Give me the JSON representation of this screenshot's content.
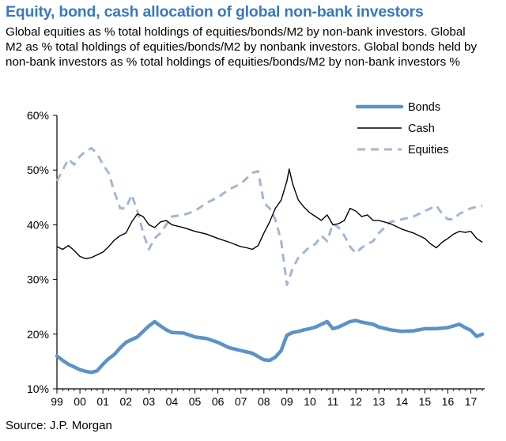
{
  "chart_data": {
    "type": "line",
    "title": "Equity, bond, cash allocation of global non-bank investors",
    "subtitle": "Global equities as % total holdings of equities/bonds/M2 by non-bank investors. Global M2 as % total holdings of equities/bonds/M2 by nonbank investors. Global bonds held by non-bank investors as % total holdings of equities/bonds/M2 by non-bank investors %",
    "source": "Source: J.P. Morgan",
    "xlabel": "",
    "ylabel": "",
    "xlim": [
      1999,
      2017.6
    ],
    "ylim": [
      10,
      60
    ],
    "x_tick_values": [
      1999,
      2000,
      2001,
      2002,
      2003,
      2004,
      2005,
      2006,
      2007,
      2008,
      2009,
      2010,
      2011,
      2012,
      2013,
      2014,
      2015,
      2016,
      2017
    ],
    "x_tick_labels": [
      "99",
      "00",
      "01",
      "02",
      "03",
      "04",
      "05",
      "06",
      "07",
      "08",
      "09",
      "10",
      "11",
      "12",
      "13",
      "14",
      "15",
      "16",
      "17"
    ],
    "y_tick_values": [
      10,
      20,
      30,
      40,
      50,
      60
    ],
    "y_tick_labels": [
      "10%",
      "20%",
      "30%",
      "40%",
      "50%",
      "60%"
    ],
    "legend_position": "top-right",
    "series": [
      {
        "name": "Bonds",
        "style": "thick-solid",
        "color": "#5b93c7",
        "x": [
          1999,
          1999.25,
          1999.5,
          1999.75,
          2000,
          2000.25,
          2000.5,
          2000.75,
          2001,
          2001.25,
          2001.5,
          2001.75,
          2002,
          2002.25,
          2002.5,
          2002.75,
          2003,
          2003.25,
          2003.5,
          2003.75,
          2004,
          2004.5,
          2005,
          2005.5,
          2006,
          2006.5,
          2007,
          2007.5,
          2008,
          2008.25,
          2008.5,
          2008.75,
          2009,
          2009.25,
          2009.5,
          2009.75,
          2010,
          2010.25,
          2010.5,
          2010.75,
          2011,
          2011.25,
          2011.5,
          2011.75,
          2012,
          2012.25,
          2012.5,
          2012.75,
          2013,
          2013.5,
          2014,
          2014.5,
          2015,
          2015.5,
          2016,
          2016.25,
          2016.5,
          2016.75,
          2017,
          2017.25,
          2017.5
        ],
        "values": [
          16,
          15.2,
          14.5,
          14,
          13.5,
          13.2,
          13,
          13.3,
          14.5,
          15.5,
          16.3,
          17.5,
          18.5,
          19,
          19.5,
          20.5,
          21.5,
          22.3,
          21.5,
          20.8,
          20.3,
          20.2,
          19.5,
          19.2,
          18.5,
          17.5,
          17,
          16.5,
          15.3,
          15.2,
          15.8,
          17,
          19.8,
          20.3,
          20.5,
          20.8,
          21,
          21.3,
          21.8,
          22.3,
          21,
          21.3,
          21.8,
          22.3,
          22.5,
          22.2,
          22,
          21.8,
          21.3,
          20.8,
          20.5,
          20.6,
          21,
          21,
          21.2,
          21.5,
          21.8,
          21.2,
          20.7,
          19.6,
          20
        ]
      },
      {
        "name": "Cash",
        "style": "thin-solid",
        "color": "#000000",
        "x": [
          1999,
          1999.25,
          1999.5,
          1999.75,
          2000,
          2000.25,
          2000.5,
          2000.75,
          2001,
          2001.25,
          2001.5,
          2001.75,
          2002,
          2002.25,
          2002.5,
          2002.75,
          2003,
          2003.25,
          2003.5,
          2003.75,
          2004,
          2004.5,
          2005,
          2005.5,
          2006,
          2006.5,
          2007,
          2007.25,
          2007.5,
          2007.75,
          2008,
          2008.25,
          2008.5,
          2008.75,
          2009,
          2009.1,
          2009.25,
          2009.5,
          2009.75,
          2010,
          2010.25,
          2010.5,
          2010.75,
          2011,
          2011.25,
          2011.5,
          2011.75,
          2012,
          2012.25,
          2012.5,
          2012.75,
          2013,
          2013.5,
          2014,
          2014.5,
          2015,
          2015.25,
          2015.5,
          2015.75,
          2016,
          2016.25,
          2016.5,
          2016.75,
          2017,
          2017.25,
          2017.5
        ],
        "values": [
          36,
          35.5,
          36.2,
          35.3,
          34.2,
          33.8,
          34,
          34.5,
          35,
          36,
          37.2,
          38,
          38.5,
          40.5,
          42,
          41.5,
          40,
          39.5,
          40.5,
          40.8,
          40,
          39.5,
          38.8,
          38.3,
          37.5,
          36.8,
          36,
          35.8,
          35.5,
          36.2,
          38.5,
          40.5,
          43,
          44.5,
          48,
          50.2,
          47.5,
          44.5,
          43.2,
          42.2,
          41.5,
          40.8,
          41.8,
          40,
          40.2,
          40.8,
          43,
          42.5,
          41.5,
          41.8,
          40.8,
          40.8,
          40.2,
          39.2,
          38.5,
          37.5,
          36.5,
          35.8,
          36.8,
          37.5,
          38.3,
          38.8,
          38.6,
          38.8,
          37.5,
          36.8
        ]
      },
      {
        "name": "Equities",
        "style": "dashed",
        "color": "#a4b6d3",
        "x": [
          1999,
          1999.25,
          1999.5,
          1999.75,
          2000,
          2000.25,
          2000.5,
          2000.75,
          2001,
          2001.25,
          2001.5,
          2001.75,
          2002,
          2002.25,
          2002.5,
          2002.75,
          2003,
          2003.25,
          2003.5,
          2003.75,
          2004,
          2004.5,
          2005,
          2005.5,
          2006,
          2006.5,
          2007,
          2007.25,
          2007.5,
          2007.75,
          2008,
          2008.25,
          2008.5,
          2008.75,
          2009,
          2009.25,
          2009.5,
          2009.75,
          2010,
          2010.25,
          2010.5,
          2010.75,
          2011,
          2011.25,
          2011.5,
          2011.75,
          2012,
          2012.25,
          2012.5,
          2012.75,
          2013,
          2013.5,
          2014,
          2014.5,
          2015,
          2015.25,
          2015.5,
          2015.75,
          2016,
          2016.25,
          2016.5,
          2016.75,
          2017,
          2017.25,
          2017.5
        ],
        "values": [
          48,
          50,
          52,
          51,
          52.5,
          53.5,
          54,
          53,
          51,
          49.5,
          46,
          43,
          43,
          45.5,
          42.5,
          38.5,
          35.5,
          37.5,
          38.5,
          40,
          41.5,
          41.8,
          42.5,
          44,
          45,
          46.5,
          47.5,
          48.5,
          49.5,
          49.8,
          44,
          43,
          41,
          37,
          29,
          32,
          34,
          35,
          36,
          36.5,
          38,
          37,
          40.2,
          39.5,
          38,
          36,
          34.8,
          35.8,
          36.5,
          37,
          38.5,
          40.5,
          41,
          41.5,
          42.5,
          43,
          43.5,
          42,
          41,
          41,
          42,
          42.5,
          43,
          43.3,
          43.5
        ]
      }
    ]
  }
}
